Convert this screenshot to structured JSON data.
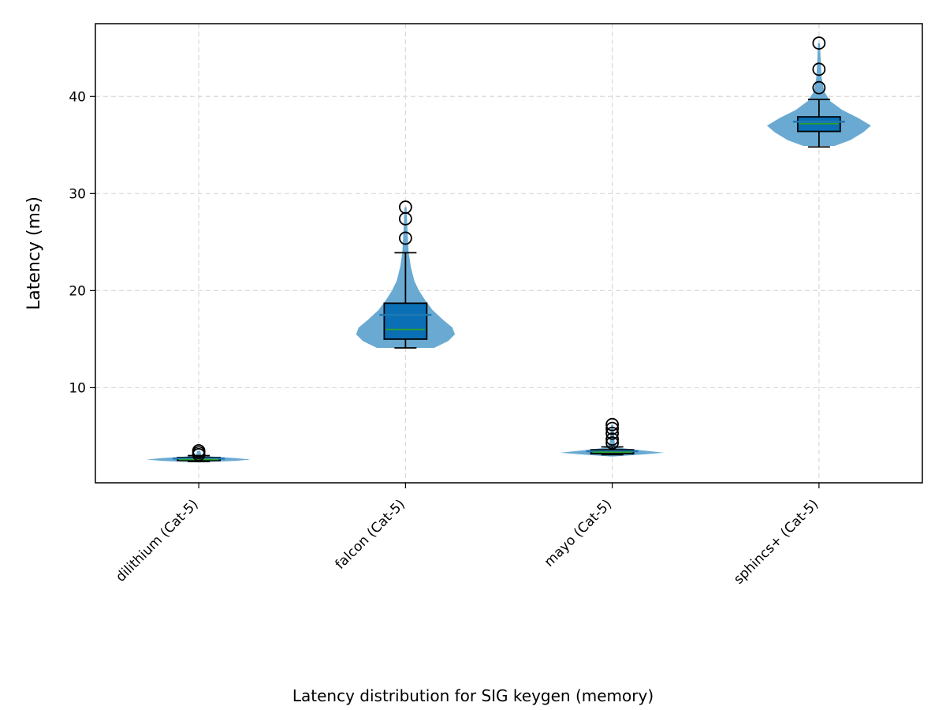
{
  "chart_data": {
    "type": "violin",
    "categories": [
      "dilithium (Cat-5)",
      "falcon (Cat-5)",
      "mayo (Cat-5)",
      "sphincs+ (Cat-5)"
    ],
    "ylabel": "Latency (ms)",
    "caption": "Latency distribution for SIG keygen (memory)",
    "ylim": [
      0.2,
      47.5
    ],
    "yticks": [
      10,
      20,
      30,
      40
    ],
    "grid": true,
    "colors": {
      "violin": "#6aaad2",
      "box": "#0a6fb4",
      "median": "#2ca02c",
      "mean": "#1f77b4",
      "grid": "#d9d9d9"
    },
    "series": [
      {
        "category": "dilithium (Cat-5)",
        "min": 2.4,
        "q1": 2.5,
        "median": 2.6,
        "q3": 2.8,
        "max": 3.0,
        "mean": 2.7,
        "outliers": [
          3.1,
          3.3,
          3.5
        ],
        "density": [
          [
            2.3,
            0.0
          ],
          [
            2.45,
            0.7
          ],
          [
            2.6,
            1.0
          ],
          [
            2.75,
            0.7
          ],
          [
            2.9,
            0.25
          ],
          [
            3.0,
            0.05
          ],
          [
            3.5,
            0.03
          ]
        ]
      },
      {
        "category": "falcon (Cat-5)",
        "min": 14.1,
        "q1": 15.0,
        "median": 16.0,
        "q3": 18.7,
        "max": 23.9,
        "mean": 17.5,
        "outliers": [
          25.4,
          27.4,
          28.6
        ],
        "density": [
          [
            14.1,
            0.55
          ],
          [
            14.8,
            0.82
          ],
          [
            15.5,
            0.95
          ],
          [
            16.2,
            0.9
          ],
          [
            17.0,
            0.72
          ],
          [
            18.0,
            0.52
          ],
          [
            19.0,
            0.38
          ],
          [
            20.0,
            0.26
          ],
          [
            21.0,
            0.17
          ],
          [
            22.5,
            0.1
          ],
          [
            24.0,
            0.06
          ],
          [
            26.0,
            0.04
          ],
          [
            28.6,
            0.02
          ]
        ]
      },
      {
        "category": "mayo (Cat-5)",
        "min": 3.1,
        "q1": 3.2,
        "median": 3.35,
        "q3": 3.6,
        "max": 3.9,
        "mean": 3.45,
        "outliers": [
          4.3,
          4.7,
          5.3,
          5.8,
          6.2
        ],
        "density": [
          [
            2.9,
            0.0
          ],
          [
            3.1,
            0.55
          ],
          [
            3.3,
            1.0
          ],
          [
            3.55,
            0.55
          ],
          [
            3.8,
            0.15
          ],
          [
            4.2,
            0.05
          ],
          [
            6.2,
            0.02
          ]
        ]
      },
      {
        "category": "sphincs+ (Cat-5)",
        "min": 34.8,
        "q1": 36.4,
        "median": 37.2,
        "q3": 37.9,
        "max": 39.7,
        "mean": 37.4,
        "outliers": [
          40.9,
          42.8,
          45.5
        ],
        "density": [
          [
            34.9,
            0.3
          ],
          [
            35.5,
            0.6
          ],
          [
            36.3,
            0.85
          ],
          [
            37.0,
            1.0
          ],
          [
            37.8,
            0.75
          ],
          [
            38.6,
            0.45
          ],
          [
            39.5,
            0.22
          ],
          [
            40.5,
            0.1
          ],
          [
            42.0,
            0.05
          ],
          [
            44.0,
            0.03
          ],
          [
            45.5,
            0.02
          ]
        ]
      }
    ]
  }
}
